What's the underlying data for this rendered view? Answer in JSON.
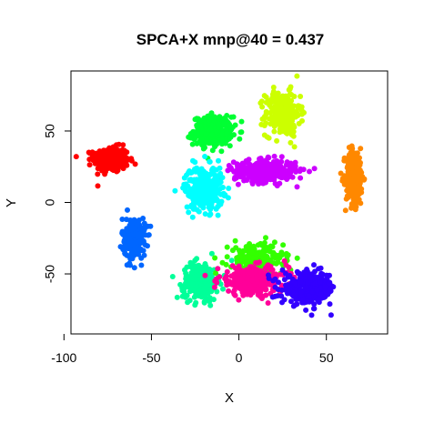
{
  "chart_data": {
    "type": "scatter",
    "title": "SPCA+X mnp@40 = 0.437",
    "xlabel": "X",
    "ylabel": "Y",
    "xlim": [
      -96,
      85
    ],
    "ylim": [
      -92,
      92
    ],
    "xticks": [
      "-100",
      "-50",
      "0",
      "50"
    ],
    "yticks": [
      "-50",
      "0",
      "50"
    ],
    "grid": false,
    "legend": "none",
    "clusters": [
      {
        "color": "#ff0000",
        "center": [
          -73,
          30
        ],
        "spread": [
          9,
          8
        ],
        "count": 320
      },
      {
        "color": "#00ff33",
        "center": [
          -15,
          50
        ],
        "spread": [
          10,
          9
        ],
        "count": 320
      },
      {
        "color": "#ccff00",
        "center": [
          25,
          62
        ],
        "spread": [
          9,
          14
        ],
        "count": 260
      },
      {
        "color": "#ff8800",
        "center": [
          66,
          18
        ],
        "spread": [
          4.5,
          18
        ],
        "count": 300
      },
      {
        "color": "#cc00ff",
        "center": [
          15,
          22
        ],
        "spread": [
          16,
          7
        ],
        "count": 340
      },
      {
        "color": "#00ffff",
        "center": [
          -20,
          10
        ],
        "spread": [
          10,
          14
        ],
        "count": 280
      },
      {
        "color": "#0066ff",
        "center": [
          -60,
          -25
        ],
        "spread": [
          6,
          13
        ],
        "count": 260
      },
      {
        "color": "#00ff99",
        "center": [
          -22,
          -55
        ],
        "spread": [
          9,
          12
        ],
        "count": 240
      },
      {
        "color": "#33ff00",
        "center": [
          10,
          -40
        ],
        "spread": [
          14,
          10
        ],
        "count": 240
      },
      {
        "color": "#ff0099",
        "center": [
          8,
          -55
        ],
        "spread": [
          18,
          9
        ],
        "count": 300
      },
      {
        "color": "#3300ff",
        "center": [
          40,
          -60
        ],
        "spread": [
          14,
          10
        ],
        "count": 320
      }
    ]
  }
}
